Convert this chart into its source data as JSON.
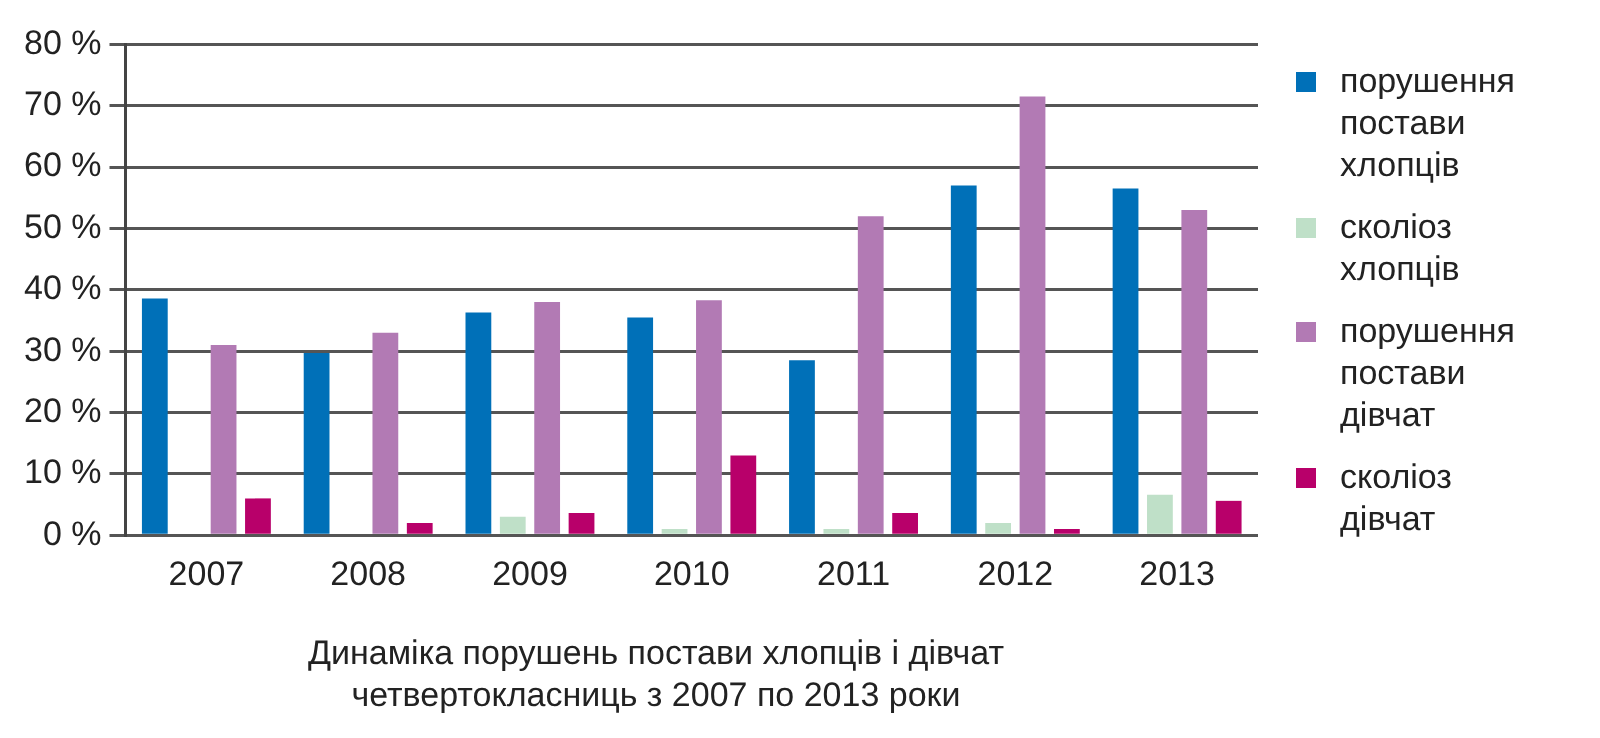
{
  "chart_data": {
    "type": "bar",
    "title": "Динаміка порушень постави хлопців і дівчат четвертокласниць з 2007 по 2013 роки",
    "categories": [
      "2007",
      "2008",
      "2009",
      "2010",
      "2011",
      "2012",
      "2013"
    ],
    "series": [
      {
        "name": "порушення постави хлопців",
        "color": "#0070b8",
        "values": [
          38.6,
          29.7,
          36.3,
          35.5,
          28.5,
          57,
          56.5
        ]
      },
      {
        "name": "сколіоз хлопців",
        "color": "#bfe0c8",
        "values": [
          0,
          0,
          3,
          1,
          1,
          2,
          6.6
        ]
      },
      {
        "name": "порушення постави дівчат",
        "color": "#b27ab4",
        "values": [
          31,
          33,
          38,
          38.3,
          52,
          71.5,
          53
        ]
      },
      {
        "name": "сколіоз дівчат",
        "color": "#b8006a",
        "values": [
          6,
          2,
          3.6,
          13,
          3.6,
          1,
          5.6
        ]
      }
    ],
    "ylim": [
      0,
      80
    ],
    "yticks": [
      {
        "value": 0,
        "label": "0 %"
      },
      {
        "value": 10,
        "label": "10 %"
      },
      {
        "value": 20,
        "label": "20 %"
      },
      {
        "value": 30,
        "label": "30 %"
      },
      {
        "value": 40,
        "label": "40 %"
      },
      {
        "value": 50,
        "label": "50 %"
      },
      {
        "value": 60,
        "label": "60 %"
      },
      {
        "value": 70,
        "label": "70 %"
      },
      {
        "value": 80,
        "label": "80 %"
      }
    ],
    "grid": "y",
    "legend": "right"
  }
}
